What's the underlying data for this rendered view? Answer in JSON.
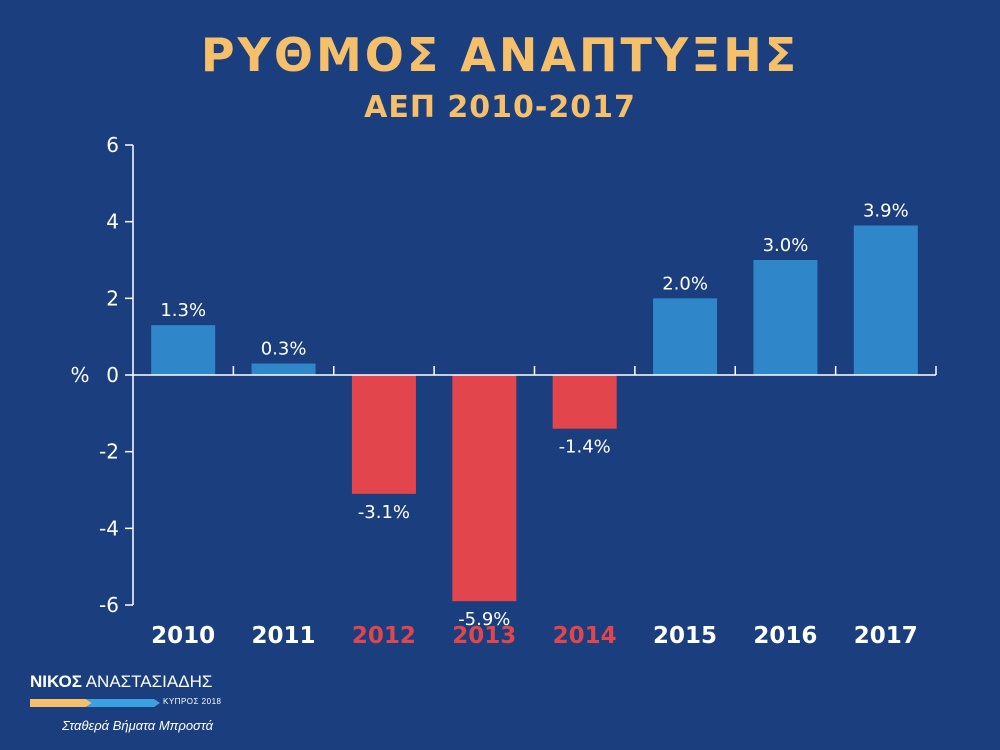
{
  "header": {
    "title": "ΡΥΘΜΟΣ ΑΝΑΠΤΥΞΗΣ",
    "subtitle": "ΑΕΠ 2010-2017"
  },
  "colors": {
    "background": "#1b3f7e",
    "title": "#f6c06b",
    "positive": "#2f86c8",
    "negative": "#e2464c",
    "negative_label": "#e2464c",
    "axis": "#ffffff",
    "text": "#ffffff"
  },
  "chart_data": {
    "type": "bar",
    "title": "ΡΥΘΜΟΣ ΑΝΑΠΤΥΞΗΣ",
    "subtitle": "ΑΕΠ 2010-2017",
    "ylabel": "%",
    "xlabel": "",
    "ylim": [
      -6,
      6
    ],
    "yticks": [
      6,
      4,
      2,
      0,
      -2,
      -4,
      -6
    ],
    "grid": false,
    "categories": [
      "2010",
      "2011",
      "2012",
      "2013",
      "2014",
      "2015",
      "2016",
      "2017"
    ],
    "values": [
      1.3,
      0.3,
      -3.1,
      -5.9,
      -1.4,
      2.0,
      3.0,
      3.9
    ],
    "data_labels": [
      "1.3%",
      "0.3%",
      "-3.1%",
      "-5.9%",
      "-1.4%",
      "2.0%",
      "3.0%",
      "3.9%"
    ]
  },
  "branding": {
    "name_first": "ΝΙΚΟΣ",
    "name_last": "ΑΝΑΣΤΑΣΙΑΔΗΣ",
    "year_label": "ΚΥΠΡΟΣ 2018",
    "slogan": "Σταθερά Βήματα Μπροστά",
    "bar_colors": [
      "#f6c06b",
      "#3ba1e0",
      "#2a6fb5"
    ]
  }
}
